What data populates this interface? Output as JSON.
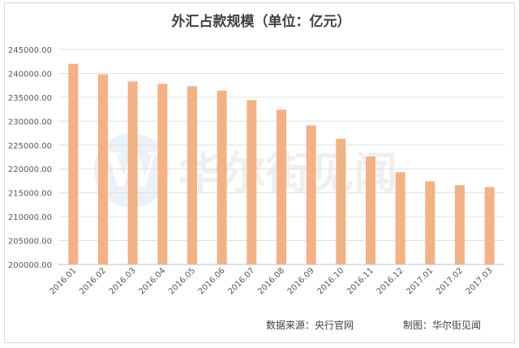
{
  "chart_data": {
    "type": "bar",
    "title": "外汇占款规模（单位：亿元）",
    "categories": [
      "2016.01",
      "2016.02",
      "2016.03",
      "2016.04",
      "2016.05",
      "2016.06",
      "2016.07",
      "2016.08",
      "2016.09",
      "2016.10",
      "2016.11",
      "2016.12",
      "2017.01",
      "2017.02",
      "2017.03"
    ],
    "values": [
      242000,
      239800,
      238300,
      237800,
      237300,
      236400,
      234400,
      232400,
      229100,
      226300,
      222600,
      219300,
      217400,
      216600,
      216200
    ],
    "ylim": [
      200000,
      245000
    ],
    "yticks": [
      "200000.00",
      "205000.00",
      "210000.00",
      "215000.00",
      "220000.00",
      "225000.00",
      "230000.00",
      "235000.00",
      "240000.00",
      "245000.00"
    ],
    "grid": true,
    "bar_color": "#f4b183",
    "source": "数据来源：央行官网",
    "credit": "制图：华尔街见闻",
    "watermark": "华尔街见闻"
  }
}
